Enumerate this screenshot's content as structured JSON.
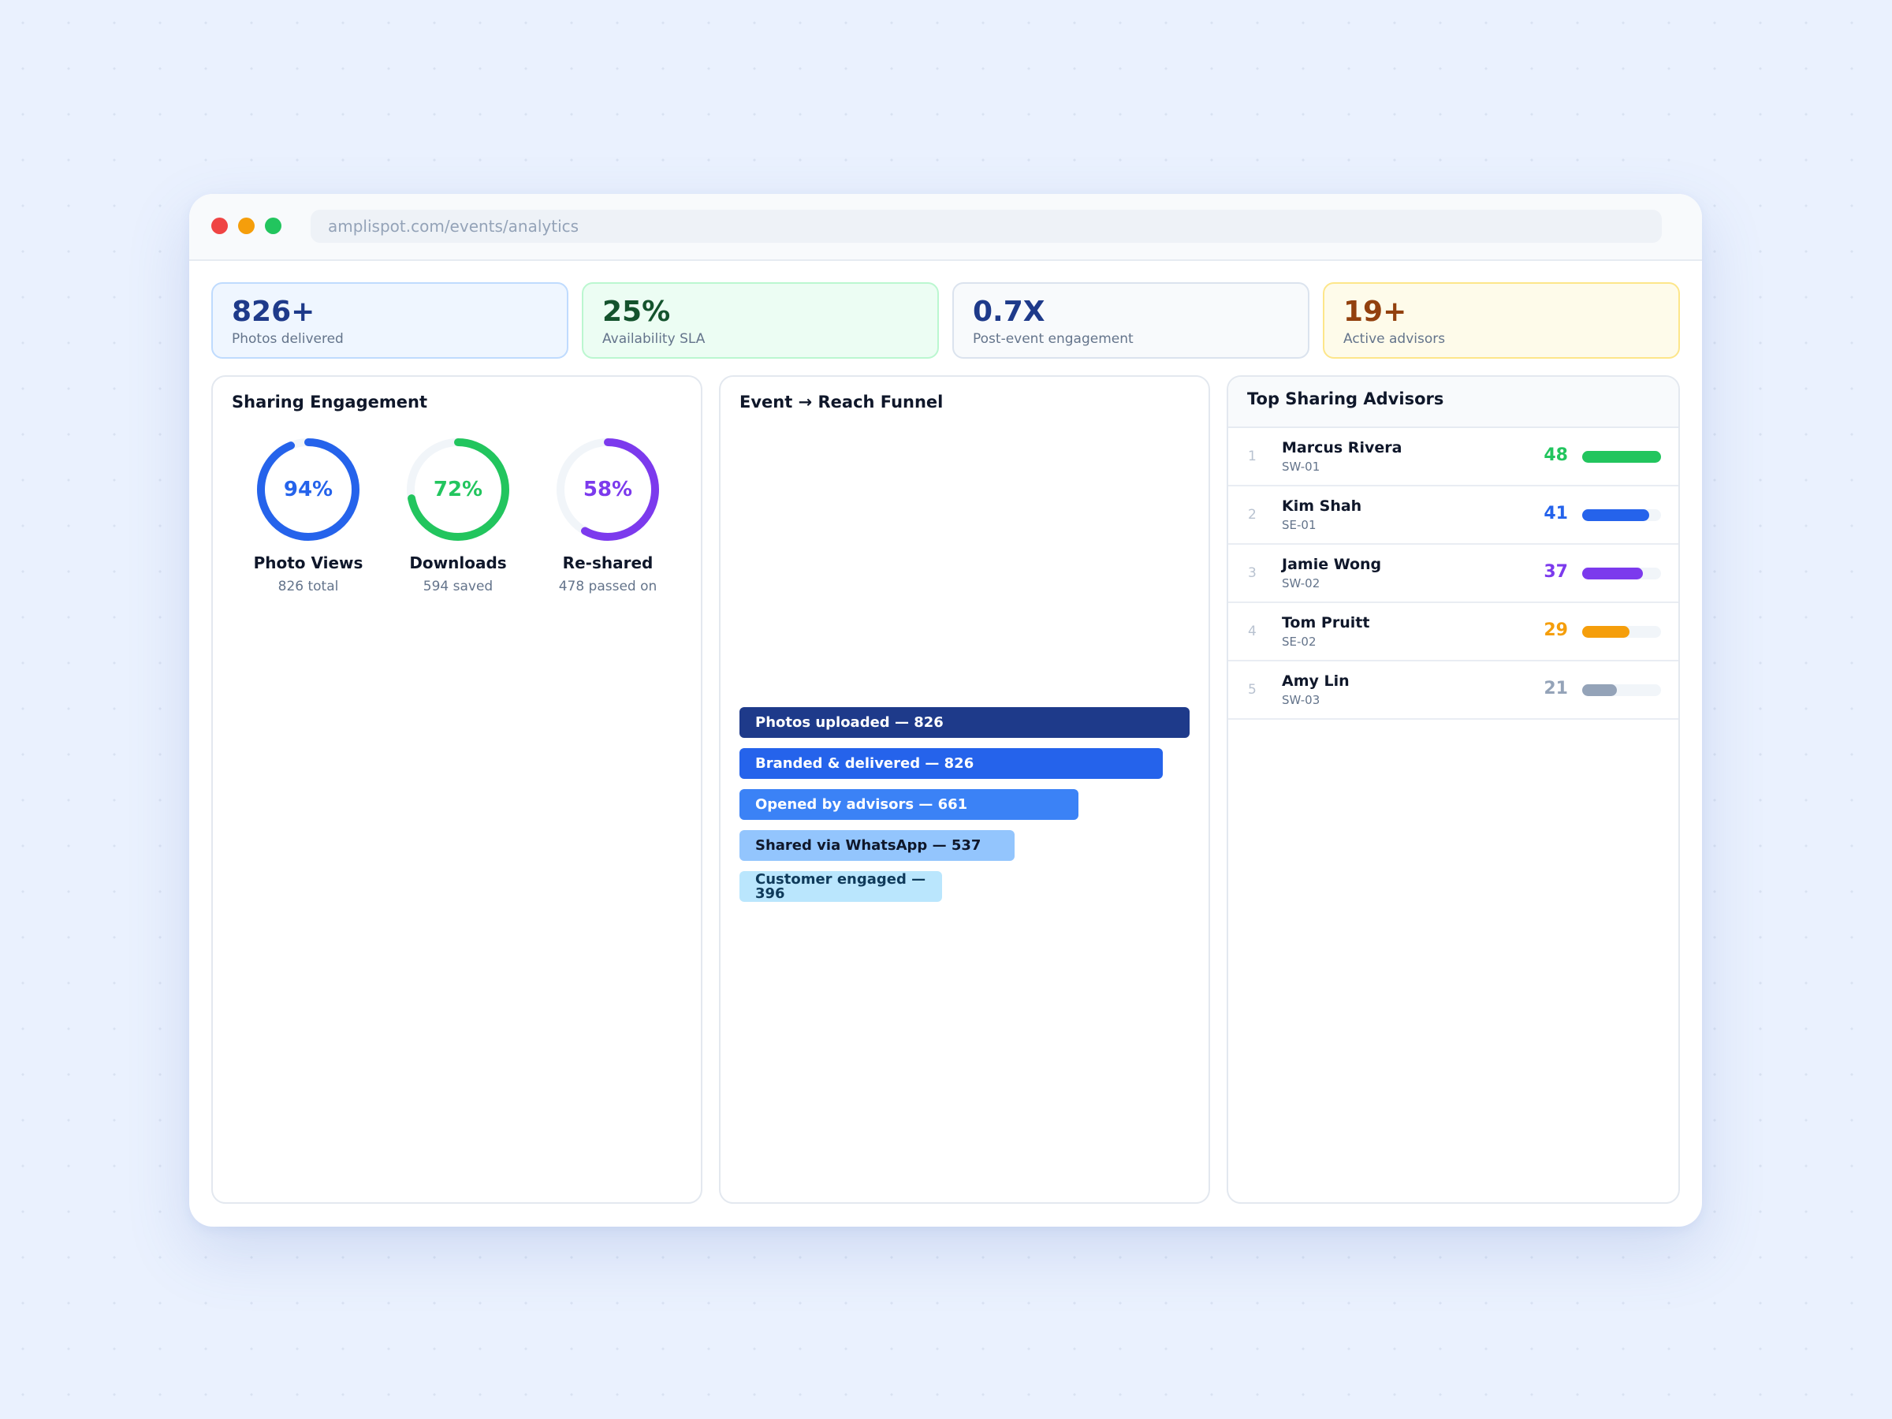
{
  "browser": {
    "url": "amplispot.com/events/analytics"
  },
  "kpis": [
    {
      "value": "826+",
      "label": "Photos delivered"
    },
    {
      "value": "25%",
      "label": "Availability SLA"
    },
    {
      "value": "0.7X",
      "label": "Post-event engagement"
    },
    {
      "value": "19+",
      "label": "Active advisors"
    }
  ],
  "engagement": {
    "title": "Sharing Engagement",
    "gauges": [
      {
        "percent_text": "94%",
        "value": 94,
        "name": "Photo Views",
        "sub": "826 total",
        "color": "#2563eb"
      },
      {
        "percent_text": "72%",
        "value": 72,
        "name": "Downloads",
        "sub": "594 saved",
        "color": "#22c55e"
      },
      {
        "percent_text": "58%",
        "value": 58,
        "name": "Re-shared",
        "sub": "478 passed on",
        "color": "#7c3aed"
      }
    ]
  },
  "funnel": {
    "title": "Event → Reach Funnel",
    "stages": [
      {
        "label": "Photos uploaded — 826",
        "value": 826,
        "color": "#1e3a8a",
        "text_color": "#ffffff"
      },
      {
        "label": "Branded & delivered — 826",
        "value": 826,
        "color": "#2563eb",
        "text_color": "#ffffff"
      },
      {
        "label": "Opened by advisors — 661",
        "value": 661,
        "color": "#3b82f6",
        "text_color": "#ffffff"
      },
      {
        "label": "Shared via WhatsApp — 537",
        "value": 537,
        "color": "#93c5fd",
        "text_color": "#0f172a"
      },
      {
        "label": "Customer engaged — 396",
        "value": 396,
        "color": "#bae6fd",
        "text_color": "#0f3a5a"
      }
    ]
  },
  "advisors": {
    "title": "Top Sharing Advisors",
    "rows": [
      {
        "rank": "1",
        "name": "Marcus Rivera",
        "code": "SW-01",
        "score": "48",
        "value": 48,
        "color": "#22c55e"
      },
      {
        "rank": "2",
        "name": "Kim Shah",
        "code": "SE-01",
        "score": "41",
        "value": 41,
        "color": "#2563eb"
      },
      {
        "rank": "3",
        "name": "Jamie Wong",
        "code": "SW-02",
        "score": "37",
        "value": 37,
        "color": "#7c3aed"
      },
      {
        "rank": "4",
        "name": "Tom Pruitt",
        "code": "SE-02",
        "score": "29",
        "value": 29,
        "color": "#f59e0b"
      },
      {
        "rank": "5",
        "name": "Amy Lin",
        "code": "SW-03",
        "score": "21",
        "value": 21,
        "color": "#94a3b8"
      }
    ]
  }
}
